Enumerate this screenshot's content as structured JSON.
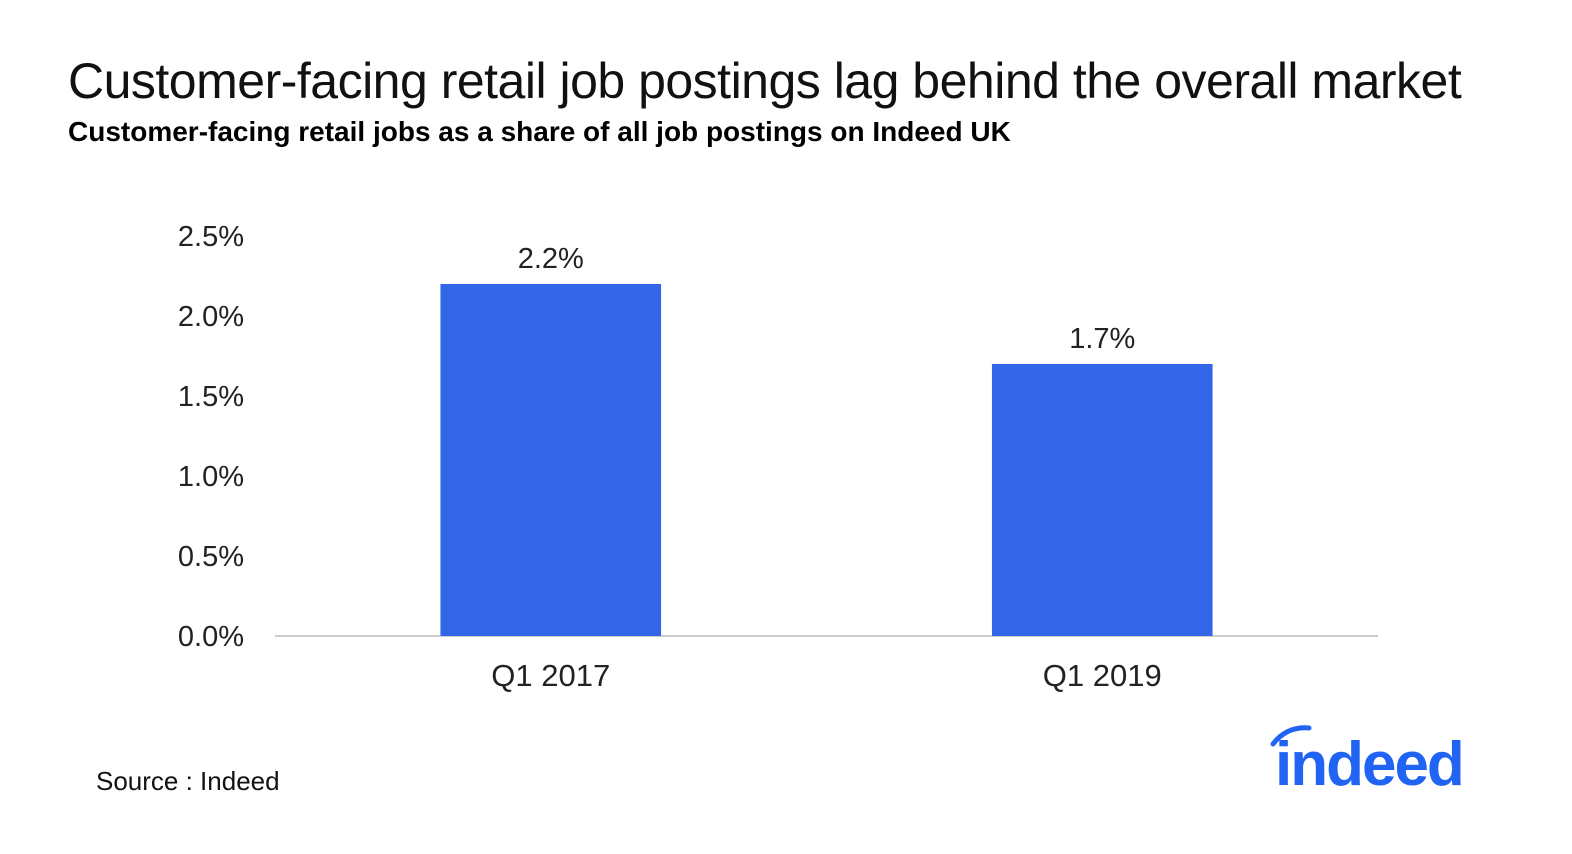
{
  "title": "Customer-facing retail job postings lag behind the overall market",
  "subtitle": "Customer-facing retail jobs as a share of all job postings on Indeed UK",
  "source": "Source : Indeed",
  "logo": {
    "text": "indeed",
    "icon": "indeed-logo-icon",
    "color": "#2164f3"
  },
  "colors": {
    "bar": "#3366e6",
    "axis": "#cccccc",
    "text": "#222222"
  },
  "chart_data": {
    "type": "bar",
    "categories": [
      "Q1 2017",
      "Q1 2019"
    ],
    "values": [
      2.2,
      1.7
    ],
    "value_labels": [
      "2.2%",
      "1.7%"
    ],
    "ylim": [
      0,
      2.5
    ],
    "yticks": [
      0.0,
      0.5,
      1.0,
      1.5,
      2.0,
      2.5
    ],
    "ytick_labels": [
      "0.0%",
      "0.5%",
      "1.0%",
      "1.5%",
      "2.0%",
      "2.5%"
    ],
    "grid": false,
    "legend": "none"
  }
}
